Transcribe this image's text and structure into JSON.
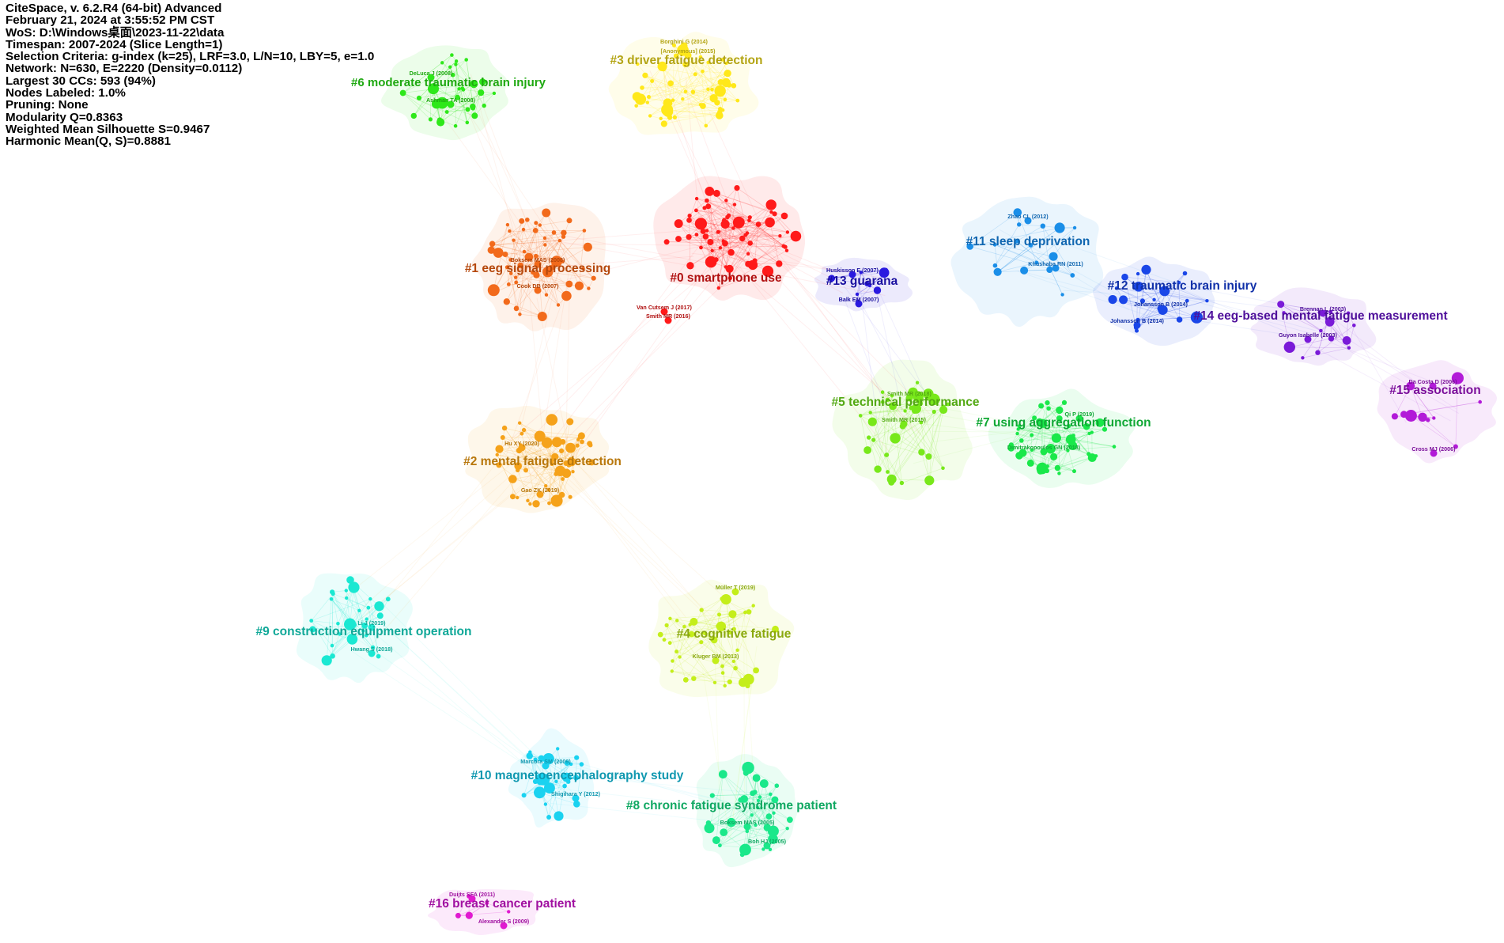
{
  "info_panel": [
    "CiteSpace, v. 6.2.R4 (64-bit) Advanced",
    "February 21, 2024 at 3:55:52 PM CST",
    "WoS: D:\\Windows桌面\\2023-11-22\\data",
    "Timespan: 2007-2024 (Slice Length=1)",
    "Selection Criteria: g-index (k=25), LRF=3.0, L/N=10, LBY=5, e=1.0",
    "Network: N=630, E=2220 (Density=0.0112)",
    "Largest 30 CCs: 593 (94%)",
    "Nodes Labeled: 1.0%",
    "Pruning: None",
    "Modularity Q=0.8363",
    "Weighted Mean Silhouette S=0.9467",
    "Harmonic Mean(Q, S)=0.8881"
  ],
  "clusters": [
    {
      "id": "c0",
      "label": "#0 smartphone use",
      "color": "#ff1a1a",
      "text_color": "#b01010",
      "seed": 11,
      "nodes": 70,
      "refs": [
        {
          "text": "Van Cutsem J (2017)"
        },
        {
          "text": "Smith MR (2016)"
        }
      ]
    },
    {
      "id": "c1",
      "label": "#1 eeg signal processing",
      "color": "#f26a1b",
      "text_color": "#b5470b",
      "seed": 23,
      "nodes": 55,
      "refs": [
        {
          "text": "Boksem MAS (2008)"
        },
        {
          "text": "Cook DB (2007)"
        }
      ]
    },
    {
      "id": "c2",
      "label": "#2 mental fatigue detection",
      "color": "#f5a21a",
      "text_color": "#b8770c",
      "seed": 37,
      "nodes": 55,
      "refs": [
        {
          "text": "Hu XY (2020)"
        },
        {
          "text": "Gao ZK (2019)"
        }
      ]
    },
    {
      "id": "c3",
      "label": "#3 driver fatigue detection",
      "color": "#ffe81a",
      "text_color": "#b3a413",
      "seed": 41,
      "nodes": 55,
      "refs": [
        {
          "text": "Borghini G (2014)"
        },
        {
          "text": "[Anonymous] (2015)"
        }
      ]
    },
    {
      "id": "c4",
      "label": "#4 cognitive fatigue",
      "color": "#c4ee1a",
      "text_color": "#8aa80e",
      "seed": 53,
      "nodes": 45,
      "refs": [
        {
          "text": "Müller T (2019)"
        },
        {
          "text": "Kluger BM (2013)"
        }
      ]
    },
    {
      "id": "c5",
      "label": "#5 technical performance",
      "color": "#78e81a",
      "text_color": "#52a812",
      "seed": 61,
      "nodes": 40,
      "refs": [
        {
          "text": "Smith MR (2018)"
        },
        {
          "text": "Smith MR (2015)"
        }
      ]
    },
    {
      "id": "c6",
      "label": "#6 moderate traumatic brain injury",
      "color": "#2ee81a",
      "text_color": "#1ea810",
      "seed": 71,
      "nodes": 35,
      "refs": [
        {
          "text": "DeLuca J (2008)"
        },
        {
          "text": "Ashman TA (2008)"
        }
      ]
    },
    {
      "id": "c7",
      "label": "#7 using aggregation function",
      "color": "#1ae84a",
      "text_color": "#10a835",
      "seed": 83,
      "nodes": 45,
      "refs": [
        {
          "text": "Qi P (2019)"
        },
        {
          "text": "Dimitrakopoulos GN (2018)"
        }
      ]
    },
    {
      "id": "c8",
      "label": "#8 chronic fatigue syndrome patient",
      "color": "#1ae88a",
      "text_color": "#10a862",
      "seed": 97,
      "nodes": 40,
      "refs": [
        {
          "text": "Boksem MAS (2005)"
        },
        {
          "text": "Boh HJ (2005)"
        }
      ]
    },
    {
      "id": "c9",
      "label": "#9 construction equipment operation",
      "color": "#1ae8d2",
      "text_color": "#10a898",
      "seed": 101,
      "nodes": 30,
      "refs": [
        {
          "text": "Li J (2019)"
        },
        {
          "text": "Hwang S (2018)"
        }
      ]
    },
    {
      "id": "c10",
      "label": "#10 magnetoencephalography study",
      "color": "#1ad2f0",
      "text_color": "#1098b0",
      "seed": 113,
      "nodes": 25,
      "refs": [
        {
          "text": "Marcora SM (2009)"
        },
        {
          "text": "Shigihara Y (2012)"
        }
      ]
    },
    {
      "id": "c11",
      "label": "#11 sleep deprivation",
      "color": "#1a8ee8",
      "text_color": "#1066b0",
      "seed": 127,
      "nodes": 18,
      "refs": [
        {
          "text": "Zhao CL (2012)"
        },
        {
          "text": "Khushaba RN (2011)"
        }
      ]
    },
    {
      "id": "c12",
      "label": "#12 traumatic brain injury",
      "color": "#1a46e8",
      "text_color": "#1030a8",
      "seed": 131,
      "nodes": 22,
      "refs": [
        {
          "text": "Johansson B (2014)"
        },
        {
          "text": "Johansson B (2014)"
        }
      ]
    },
    {
      "id": "c13",
      "label": "#13 guarana",
      "color": "#2a1ae0",
      "text_color": "#1a10a0",
      "seed": 139,
      "nodes": 10,
      "refs": [
        {
          "text": "Huskisson E (2007)"
        },
        {
          "text": "Balk EM (2007)"
        }
      ]
    },
    {
      "id": "c14",
      "label": "#14 eeg-based mental fatigue measurement",
      "color": "#7a1ad8",
      "text_color": "#4e0e9a",
      "seed": 149,
      "nodes": 14,
      "refs": [
        {
          "text": "Brennan L (2003)"
        },
        {
          "text": "Guyon Isabelle (2003)"
        }
      ]
    },
    {
      "id": "c15",
      "label": "#15 association",
      "color": "#b21ad8",
      "text_color": "#7a0e9a",
      "seed": 151,
      "nodes": 10,
      "refs": [
        {
          "text": "Da Costa D (2006)"
        },
        {
          "text": "Cross MJ (2006)"
        }
      ]
    },
    {
      "id": "c16",
      "label": "#16 breast cancer patient",
      "color": "#e01ad0",
      "text_color": "#a010a0",
      "seed": 163,
      "nodes": 5,
      "refs": [
        {
          "text": "Duijts SFA (2011)"
        },
        {
          "text": "Alexander S (2009)"
        }
      ]
    }
  ]
}
